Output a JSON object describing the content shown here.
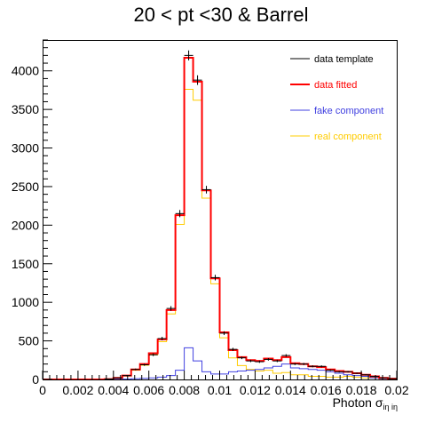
{
  "chart_data": {
    "type": "histogram",
    "title": "20 < pt <30 & Barrel",
    "xlabel": {
      "main": "Photon σ",
      "sub": "iη iη"
    },
    "ylabel": "",
    "xlim": [
      0,
      0.02
    ],
    "ylim": [
      0,
      4400
    ],
    "x_ticks": [
      {
        "value": 0,
        "label": "0"
      },
      {
        "value": 0.002,
        "label": "0.002"
      },
      {
        "value": 0.004,
        "label": "0.004"
      },
      {
        "value": 0.006,
        "label": "0.006"
      },
      {
        "value": 0.008,
        "label": "0.008"
      },
      {
        "value": 0.01,
        "label": "0.01"
      },
      {
        "value": 0.012,
        "label": "0.012"
      },
      {
        "value": 0.014,
        "label": "0.014"
      },
      {
        "value": 0.016,
        "label": "0.016"
      },
      {
        "value": 0.018,
        "label": "0.018"
      },
      {
        "value": 0.02,
        "label": "0.02"
      }
    ],
    "y_ticks": [
      {
        "value": 0,
        "label": "0"
      },
      {
        "value": 500,
        "label": "500"
      },
      {
        "value": 1000,
        "label": "1000"
      },
      {
        "value": 1500,
        "label": "1500"
      },
      {
        "value": 2000,
        "label": "2000"
      },
      {
        "value": 2500,
        "label": "2500"
      },
      {
        "value": 3000,
        "label": "3000"
      },
      {
        "value": 3500,
        "label": "3500"
      },
      {
        "value": 4000,
        "label": "4000"
      }
    ],
    "bin_width": 0.0005,
    "bin_low_edges": [
      0,
      0.0005,
      0.001,
      0.0015,
      0.002,
      0.0025,
      0.003,
      0.0035,
      0.004,
      0.0045,
      0.005,
      0.0055,
      0.006,
      0.0065,
      0.007,
      0.0075,
      0.008,
      0.0085,
      0.009,
      0.0095,
      0.01,
      0.0105,
      0.011,
      0.0115,
      0.012,
      0.0125,
      0.013,
      0.0135,
      0.014,
      0.0145,
      0.015,
      0.0155,
      0.016,
      0.0165,
      0.017,
      0.0175,
      0.018,
      0.0185,
      0.019,
      0.0195
    ],
    "series": [
      {
        "name": "data template",
        "color": "#000000",
        "style": "points",
        "values": [
          0,
          0,
          0,
          0,
          0,
          0,
          0,
          5,
          20,
          50,
          130,
          190,
          320,
          530,
          920,
          2150,
          4200,
          3880,
          2460,
          1320,
          600,
          390,
          280,
          240,
          230,
          260,
          240,
          310,
          200,
          200,
          170,
          170,
          120,
          100,
          100,
          80,
          60,
          40,
          20,
          10
        ]
      },
      {
        "name": "data fitted",
        "color": "#ff0000",
        "style": "step",
        "width": 2,
        "values": [
          0,
          0,
          0,
          0,
          0,
          0,
          0,
          5,
          20,
          50,
          130,
          200,
          340,
          520,
          900,
          2130,
          4170,
          3860,
          2450,
          1310,
          610,
          380,
          290,
          250,
          240,
          270,
          250,
          290,
          210,
          200,
          170,
          160,
          130,
          110,
          100,
          80,
          60,
          40,
          20,
          10
        ]
      },
      {
        "name": "fake component",
        "color": "#4040e0",
        "style": "step",
        "width": 1,
        "values": [
          0,
          0,
          0,
          0,
          0,
          0,
          0,
          0,
          2,
          5,
          10,
          15,
          20,
          30,
          50,
          120,
          410,
          240,
          100,
          70,
          70,
          100,
          110,
          120,
          130,
          150,
          170,
          200,
          150,
          140,
          130,
          120,
          100,
          80,
          60,
          50,
          40,
          20,
          10,
          5
        ]
      },
      {
        "name": "real component",
        "color": "#ffcc00",
        "style": "step",
        "width": 1,
        "values": [
          0,
          0,
          0,
          0,
          0,
          0,
          0,
          5,
          18,
          45,
          120,
          185,
          320,
          490,
          850,
          2010,
          3760,
          3620,
          2350,
          1240,
          540,
          280,
          180,
          130,
          110,
          120,
          80,
          90,
          60,
          60,
          40,
          40,
          30,
          30,
          40,
          30,
          20,
          20,
          10,
          5
        ]
      }
    ],
    "legend_placement": "top-right",
    "grid": false
  }
}
